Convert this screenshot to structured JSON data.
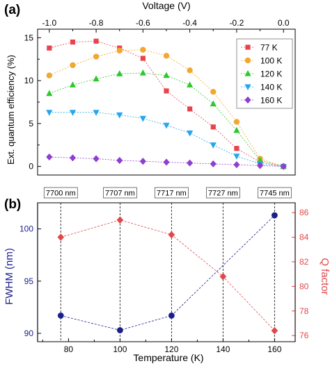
{
  "chart_data": [
    {
      "panel_label": "(a)",
      "type": "line",
      "title": "",
      "xlabel": "Voltage (V)",
      "ylabel": "Ext. quantum efficiency (%)",
      "xlim": [
        -1.05,
        0.05
      ],
      "ylim": [
        -1,
        16
      ],
      "x_ticks": [
        -1.0,
        -0.8,
        -0.6,
        -0.4,
        -0.2,
        0.0
      ],
      "x_tick_labels": [
        "-1.0",
        "-0.8",
        "-0.6",
        "-0.4",
        "-0.2",
        "0.0"
      ],
      "y_ticks": [
        0,
        5,
        10,
        15
      ],
      "y_tick_labels": [
        "0",
        "5",
        "10",
        "15"
      ],
      "x_axis_position": "top",
      "grid": false,
      "legend_position": "top-right",
      "series": [
        {
          "name": "77 K",
          "color": "#e8434d",
          "marker": "square",
          "x": [
            -1.0,
            -0.9,
            -0.8,
            -0.7,
            -0.6,
            -0.5,
            -0.4,
            -0.3,
            -0.2,
            -0.1,
            0.0
          ],
          "y": [
            13.8,
            14.5,
            14.6,
            13.8,
            12.6,
            8.8,
            6.7,
            4.6,
            2.1,
            0.5,
            0.0
          ]
        },
        {
          "name": "100 K",
          "color": "#f0a830",
          "marker": "circle",
          "x": [
            -1.0,
            -0.9,
            -0.8,
            -0.7,
            -0.6,
            -0.5,
            -0.4,
            -0.3,
            -0.2,
            -0.1,
            0.0
          ],
          "y": [
            10.6,
            11.8,
            12.8,
            13.5,
            13.6,
            12.9,
            11.2,
            8.7,
            5.2,
            0.9,
            0.0
          ]
        },
        {
          "name": "120 K",
          "color": "#2ec82e",
          "marker": "triangle-up",
          "x": [
            -1.0,
            -0.9,
            -0.8,
            -0.7,
            -0.6,
            -0.5,
            -0.4,
            -0.3,
            -0.2,
            -0.1,
            0.0
          ],
          "y": [
            8.5,
            9.5,
            10.2,
            10.8,
            10.9,
            10.6,
            9.5,
            7.3,
            4.2,
            0.7,
            0.0
          ]
        },
        {
          "name": "140 K",
          "color": "#25a6ee",
          "marker": "triangle-down",
          "x": [
            -1.0,
            -0.9,
            -0.8,
            -0.7,
            -0.6,
            -0.5,
            -0.4,
            -0.3,
            -0.2,
            -0.1,
            0.0
          ],
          "y": [
            6.3,
            6.3,
            6.3,
            6.0,
            5.6,
            4.8,
            3.9,
            2.5,
            1.2,
            0.3,
            0.0
          ]
        },
        {
          "name": "160 K",
          "color": "#8f3fd0",
          "marker": "diamond",
          "x": [
            -1.0,
            -0.9,
            -0.8,
            -0.7,
            -0.6,
            -0.5,
            -0.4,
            -0.3,
            -0.2,
            -0.1,
            0.0
          ],
          "y": [
            1.1,
            1.0,
            0.9,
            0.7,
            0.6,
            0.5,
            0.4,
            0.3,
            0.2,
            0.1,
            0.0
          ]
        }
      ]
    },
    {
      "panel_label": "(b)",
      "type": "line",
      "title": "",
      "xlabel": "Temperature (K)",
      "ylabel": "FWHM (nm)",
      "y2label": "Q factor",
      "xlim": [
        68,
        168
      ],
      "ylim": [
        89.2,
        102.5
      ],
      "y2lim": [
        75.5,
        86.8
      ],
      "x_ticks": [
        80,
        100,
        120,
        140,
        160
      ],
      "x_tick_labels": [
        "80",
        "100",
        "120",
        "140",
        "160"
      ],
      "y_ticks": [
        90,
        95,
        100
      ],
      "y_tick_labels": [
        "90",
        "95",
        "100"
      ],
      "y2_ticks": [
        76,
        78,
        80,
        82,
        84,
        86
      ],
      "y2_tick_labels": [
        "76",
        "78",
        "80",
        "82",
        "84",
        "86"
      ],
      "grid": false,
      "wavelength_markers": [
        {
          "x": 77,
          "label": "7700 nm"
        },
        {
          "x": 100,
          "label": "7707 nm"
        },
        {
          "x": 120,
          "label": "7717 nm"
        },
        {
          "x": 140,
          "label": "7727 nm"
        },
        {
          "x": 160,
          "label": "7745 nm"
        }
      ],
      "series": [
        {
          "name": "FWHM",
          "axis": "left",
          "color": "#1a1f8c",
          "marker": "circle",
          "x": [
            77,
            100,
            120,
            160
          ],
          "y": [
            91.7,
            90.3,
            91.7,
            101.3
          ]
        },
        {
          "name": "Q factor",
          "axis": "right",
          "color": "#e0484a",
          "marker": "diamond",
          "x": [
            77,
            100,
            120,
            140,
            160
          ],
          "y": [
            84.0,
            85.4,
            84.2,
            80.8,
            76.4
          ]
        }
      ]
    }
  ]
}
